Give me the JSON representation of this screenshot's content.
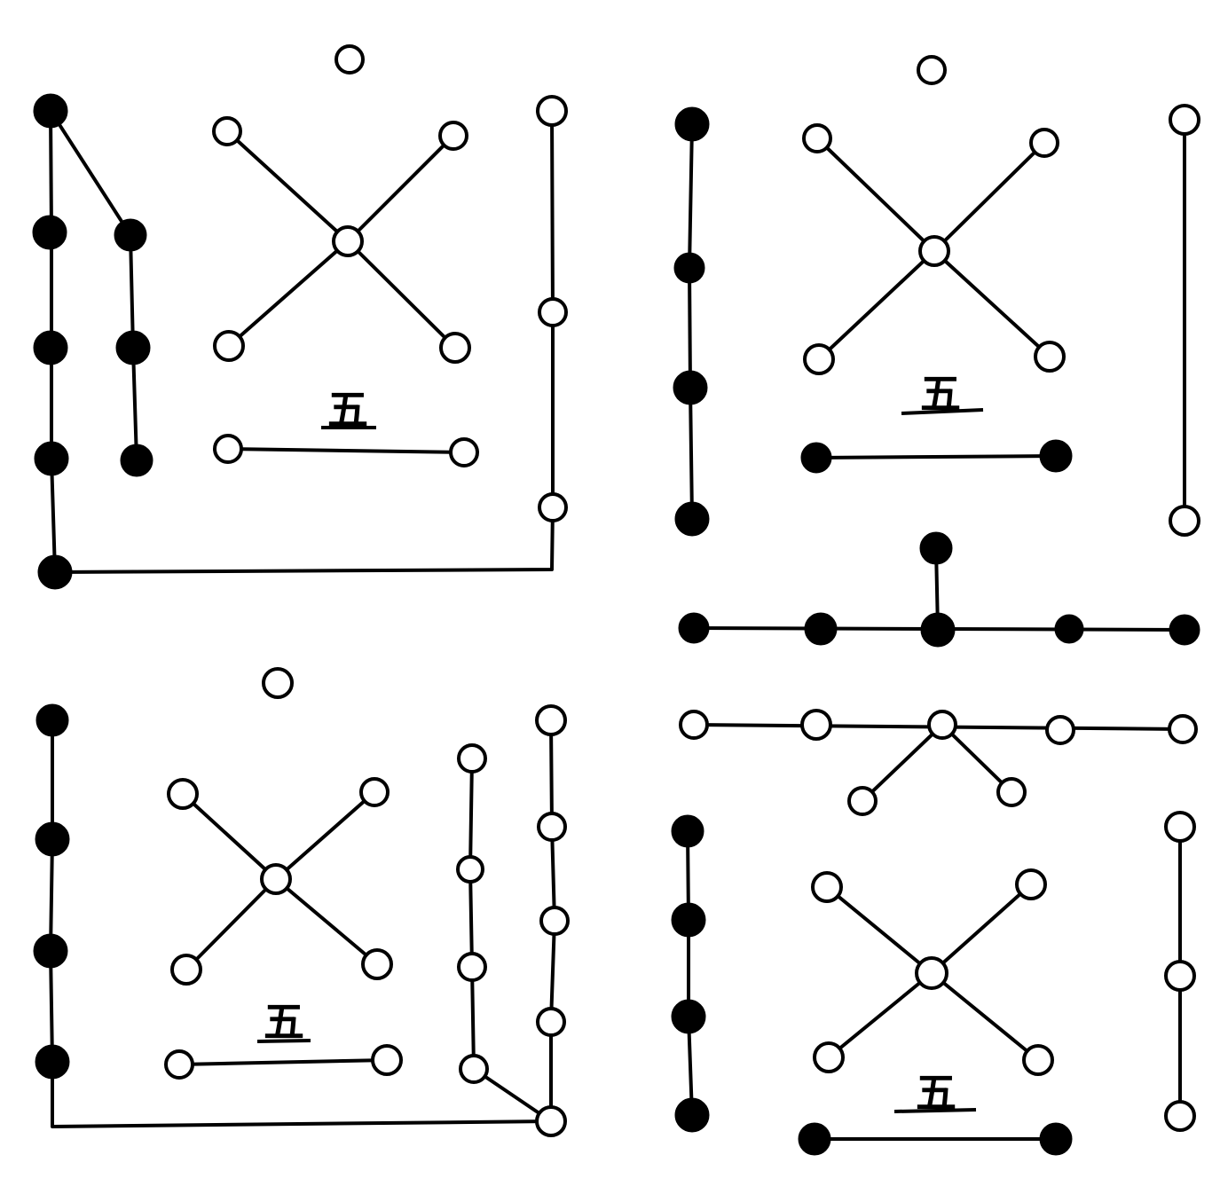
{
  "diagram": {
    "style": "ink line drawing, black and white dots connected by lines",
    "panels": [
      {
        "id": "top-left",
        "label": "五"
      },
      {
        "id": "top-right",
        "label": "五"
      },
      {
        "id": "bottom-left",
        "label": "五"
      },
      {
        "id": "bottom-right",
        "label": "五"
      }
    ],
    "colors": {
      "ink": "#000000",
      "paper": "#ffffff"
    }
  }
}
